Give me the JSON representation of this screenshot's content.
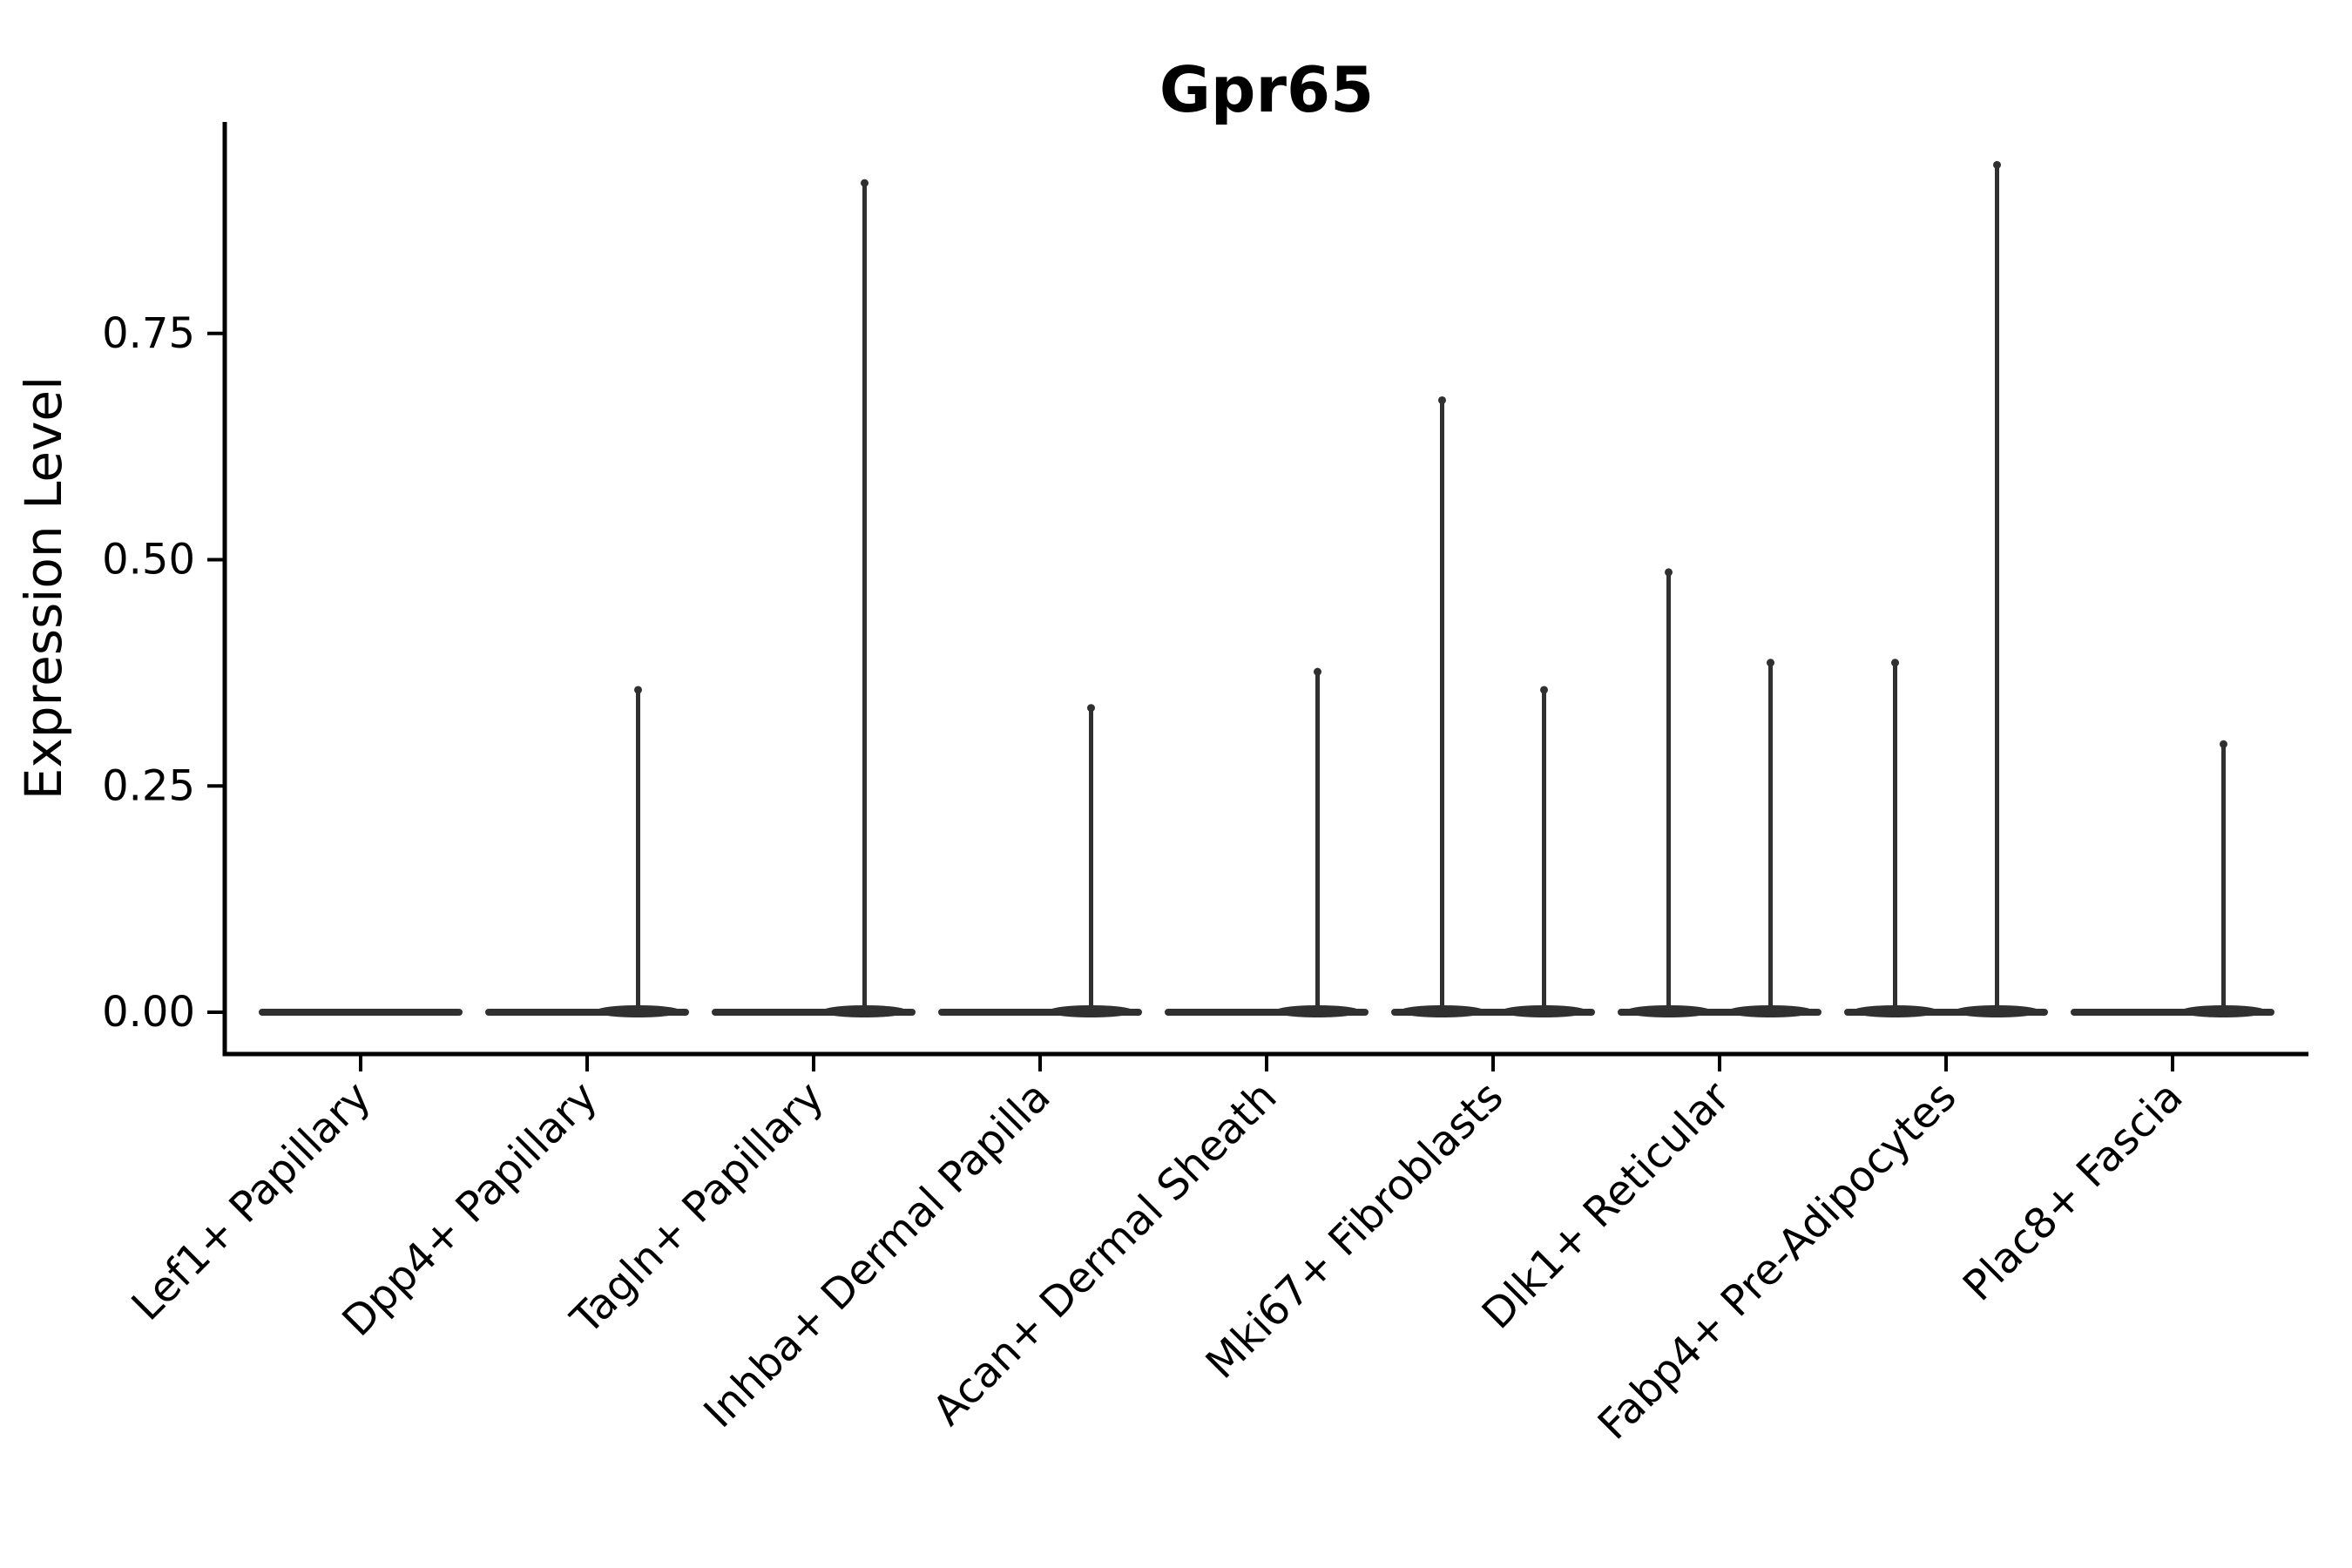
{
  "title": "Gpr65",
  "colors": {
    "violin": "#303030",
    "axis": "#000000",
    "text": "#000000",
    "background": "#ffffff"
  },
  "chart_data": {
    "type": "violin",
    "title": "Gpr65",
    "xlabel": "",
    "ylabel": "Expression Level",
    "legend": "none",
    "grid": false,
    "ylim": [
      -0.05,
      0.985
    ],
    "baseline_value": 0.0,
    "yticks": [
      {
        "value": 0.0,
        "label": "0.00"
      },
      {
        "value": 0.25,
        "label": "0.25"
      },
      {
        "value": 0.5,
        "label": "0.50"
      },
      {
        "value": 0.75,
        "label": "0.75"
      }
    ],
    "categories": [
      "Lef1+ Papillary",
      "Dpp4+ Papillary",
      "Tagln+ Papillary",
      "Inhba+ Dermal Papilla",
      "Acan+ Dermal Sheath",
      "Mki67+ Fibroblasts",
      "Dlk1+ Reticular",
      "Fabp4+ Pre-Adipocytes",
      "Plac8+ Fascia"
    ],
    "violins": [
      {
        "category": "Lef1+ Papillary",
        "body_value": 0.0,
        "spikes": []
      },
      {
        "category": "Dpp4+ Papillary",
        "body_value": 0.0,
        "spikes": [
          {
            "side": "right",
            "max": 0.36
          }
        ]
      },
      {
        "category": "Tagln+ Papillary",
        "body_value": 0.0,
        "spikes": [
          {
            "side": "right",
            "max": 0.92
          }
        ]
      },
      {
        "category": "Inhba+ Dermal Papilla",
        "body_value": 0.0,
        "spikes": [
          {
            "side": "right",
            "max": 0.34
          }
        ]
      },
      {
        "category": "Acan+ Dermal Sheath",
        "body_value": 0.0,
        "spikes": [
          {
            "side": "right",
            "max": 0.38
          }
        ]
      },
      {
        "category": "Mki67+ Fibroblasts",
        "body_value": 0.0,
        "spikes": [
          {
            "side": "left",
            "max": 0.68
          },
          {
            "side": "right",
            "max": 0.36
          }
        ]
      },
      {
        "category": "Dlk1+ Reticular",
        "body_value": 0.0,
        "spikes": [
          {
            "side": "left",
            "max": 0.49
          },
          {
            "side": "right",
            "max": 0.39
          }
        ]
      },
      {
        "category": "Fabp4+ Pre-Adipocytes",
        "body_value": 0.0,
        "spikes": [
          {
            "side": "left",
            "max": 0.39
          },
          {
            "side": "right",
            "max": 0.94
          }
        ]
      },
      {
        "category": "Plac8+ Fascia",
        "body_value": 0.0,
        "spikes": [
          {
            "side": "right",
            "max": 0.3
          }
        ]
      }
    ]
  }
}
